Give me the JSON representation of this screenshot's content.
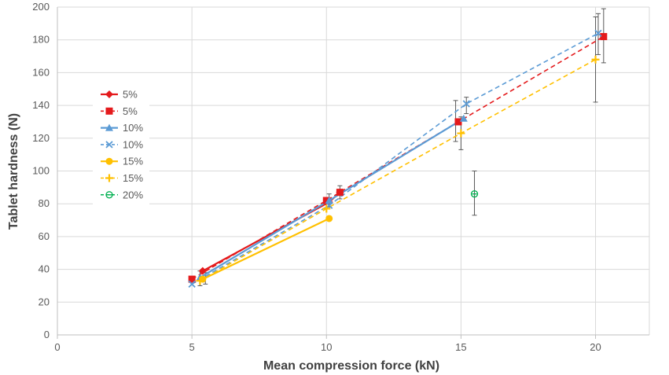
{
  "chart_data": {
    "type": "scatter",
    "xlabel": "Mean compression force (kN)",
    "ylabel": "Tablet hardness (N)",
    "xlim": [
      0,
      22
    ],
    "ylim": [
      0,
      200
    ],
    "x_ticks": [
      0,
      5,
      10,
      15,
      20
    ],
    "y_ticks": [
      0,
      20,
      40,
      60,
      80,
      100,
      120,
      140,
      160,
      180,
      200
    ],
    "grid": "vertical and horizontal major gridlines",
    "legend_position": "left",
    "series": [
      {
        "name": "5%",
        "color": "#e41a1c",
        "dash": "solid",
        "marker": "diamond",
        "points": [
          {
            "x": 5.4,
            "y": 39
          },
          {
            "x": 10.1,
            "y": 81
          },
          {
            "x": 10.5,
            "y": 87
          }
        ]
      },
      {
        "name": "5%",
        "color": "#e41a1c",
        "dash": "dashed",
        "marker": "square",
        "points": [
          {
            "x": 5.0,
            "y": 34
          },
          {
            "x": 10.0,
            "y": 82
          },
          {
            "x": 10.5,
            "y": 87
          },
          {
            "x": 14.9,
            "y": 130
          },
          {
            "x": 20.3,
            "y": 182
          }
        ]
      },
      {
        "name": "10%",
        "color": "#5b9bd5",
        "dash": "solid",
        "marker": "triangle",
        "points": [
          {
            "x": 5.3,
            "y": 35
          },
          {
            "x": 10.1,
            "y": 82
          },
          {
            "x": 15.1,
            "y": 132
          }
        ]
      },
      {
        "name": "10%",
        "color": "#5b9bd5",
        "dash": "dashed",
        "marker": "x",
        "points": [
          {
            "x": 5.0,
            "y": 31
          },
          {
            "x": 10.1,
            "y": 79
          },
          {
            "x": 15.2,
            "y": 141
          },
          {
            "x": 20.1,
            "y": 184
          }
        ]
      },
      {
        "name": "15%",
        "color": "#ffc000",
        "dash": "solid",
        "marker": "circle",
        "points": [
          {
            "x": 5.4,
            "y": 34
          },
          {
            "x": 10.1,
            "y": 71
          }
        ]
      },
      {
        "name": "15%",
        "color": "#ffc000",
        "dash": "dashed",
        "marker": "plus",
        "points": [
          {
            "x": 5.3,
            "y": 33
          },
          {
            "x": 10.0,
            "y": 77
          },
          {
            "x": 15.0,
            "y": 123
          },
          {
            "x": 20.0,
            "y": 168
          }
        ]
      },
      {
        "name": "20%",
        "color": "#00b050",
        "dash": "none",
        "marker": "circle-minus",
        "points": [
          {
            "x": 15.5,
            "y": 86
          }
        ]
      }
    ],
    "error_bars": [
      {
        "x": 5.3,
        "low": 30,
        "high": 39
      },
      {
        "x": 5.5,
        "low": 31,
        "high": 38
      },
      {
        "x": 10.1,
        "low": 78,
        "high": 86
      },
      {
        "x": 10.5,
        "low": 83,
        "high": 91
      },
      {
        "x": 14.8,
        "low": 118,
        "high": 143
      },
      {
        "x": 15.0,
        "low": 113,
        "high": 133
      },
      {
        "x": 15.2,
        "low": 135,
        "high": 145
      },
      {
        "x": 15.5,
        "low": 73,
        "high": 100
      },
      {
        "x": 20.0,
        "low": 142,
        "high": 194
      },
      {
        "x": 20.1,
        "low": 171,
        "high": 196
      },
      {
        "x": 20.3,
        "low": 166,
        "high": 199
      }
    ]
  }
}
